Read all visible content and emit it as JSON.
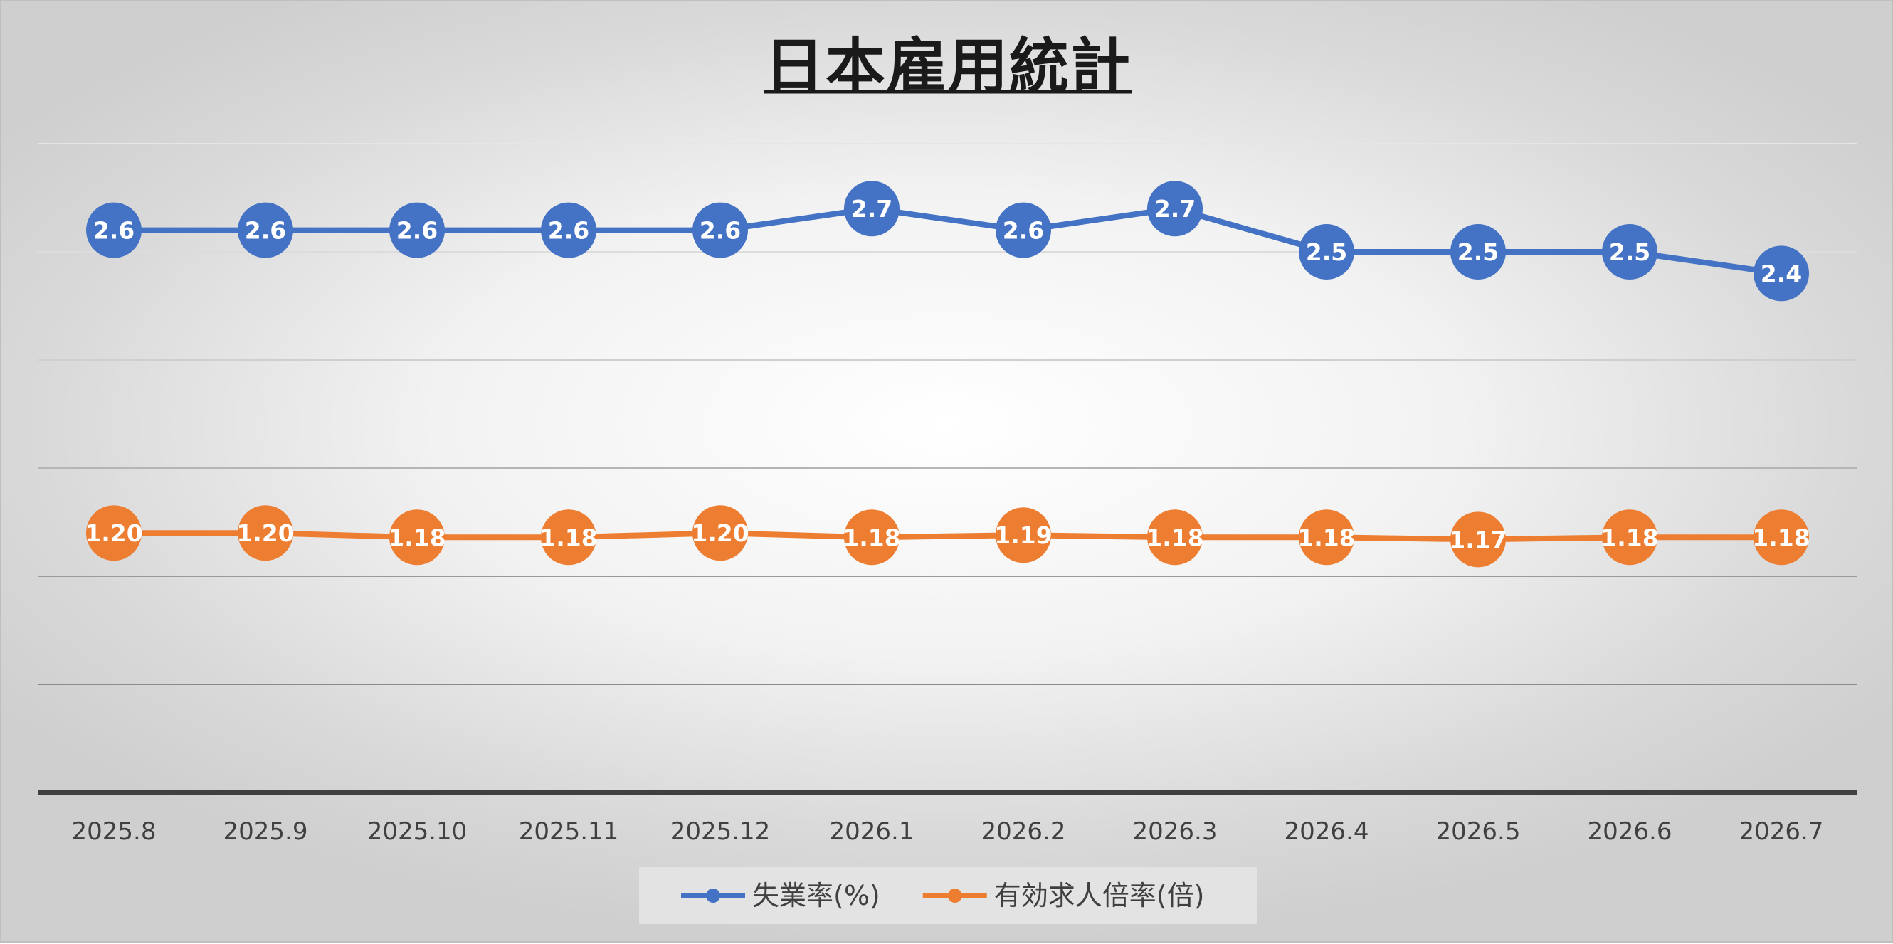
{
  "chart_data": {
    "type": "line",
    "title": "日本雇用統計",
    "categories": [
      "2025.8",
      "2025.9",
      "2025.10",
      "2025.11",
      "2025.12",
      "2026.1",
      "2026.2",
      "2026.3",
      "2026.4",
      "2026.5",
      "2026.6",
      "2026.7"
    ],
    "series": [
      {
        "name": "失業率(%)",
        "color": "#4472C4",
        "values": [
          2.6,
          2.6,
          2.6,
          2.6,
          2.6,
          2.7,
          2.6,
          2.7,
          2.5,
          2.5,
          2.5,
          2.4
        ],
        "labels": [
          "2.6",
          "2.6",
          "2.6",
          "2.6",
          "2.6",
          "2.7",
          "2.6",
          "2.7",
          "2.5",
          "2.5",
          "2.5",
          "2.4"
        ]
      },
      {
        "name": "有効求人倍率(倍)",
        "color": "#ED7D31",
        "values": [
          1.2,
          1.2,
          1.18,
          1.18,
          1.2,
          1.18,
          1.19,
          1.18,
          1.18,
          1.17,
          1.18,
          1.18
        ],
        "labels": [
          "1.20",
          "1.20",
          "1.18",
          "1.18",
          "1.20",
          "1.18",
          "1.19",
          "1.18",
          "1.18",
          "1.17",
          "1.18",
          "1.18"
        ]
      }
    ],
    "ylim": [
      0,
      3
    ],
    "grid": true,
    "legend": "bottom"
  }
}
